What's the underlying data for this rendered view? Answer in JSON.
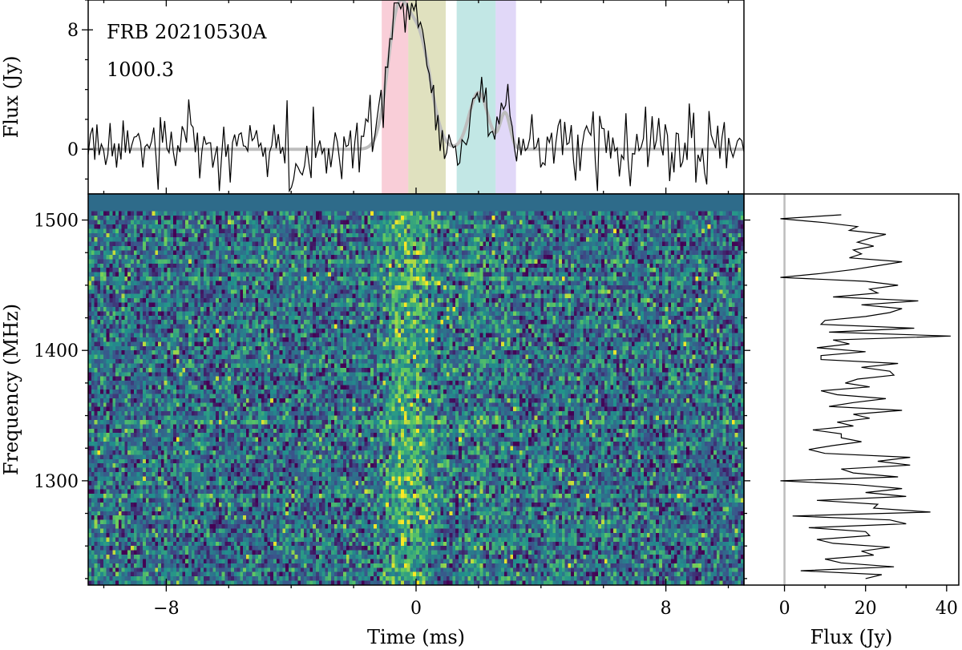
{
  "chart_data": [
    {
      "panel": "time-series",
      "type": "line",
      "title": "",
      "annotations": [
        "FRB 20210530A",
        "1000.3"
      ],
      "xlabel": "",
      "ylabel": "Flux (Jy)",
      "xlim": [
        -10.5,
        10.5
      ],
      "ylim": [
        -3,
        10
      ],
      "yticks": [
        0,
        8
      ],
      "ytick_labels": [
        "0",
        "8"
      ],
      "highlight_bands": [
        {
          "x0": -1.1,
          "x1": -0.25,
          "color": "#f4a6b8"
        },
        {
          "x0": -0.25,
          "x1": 0.95,
          "color": "#c7c98a"
        },
        {
          "x0": 1.3,
          "x1": 2.55,
          "color": "#8fd3cf"
        },
        {
          "x0": 2.55,
          "x1": 3.2,
          "color": "#c8b8f2"
        }
      ],
      "series": [
        {
          "style": "noisy-profile",
          "color": "#000000",
          "noise_rms": 1.15,
          "seed": 530,
          "x_step": 0.07
        },
        {
          "style": "model",
          "color": "#bdbdbd",
          "components": [
            {
              "amp": 8.3,
              "center": -0.6,
              "sigma": 0.33
            },
            {
              "amp": 7.2,
              "center": 0.1,
              "sigma": 0.38
            },
            {
              "amp": 3.8,
              "center": 2.0,
              "sigma": 0.3
            },
            {
              "amp": 2.4,
              "center": 2.85,
              "sigma": 0.16
            }
          ]
        }
      ]
    },
    {
      "panel": "dynamic-spectrum",
      "type": "heatmap",
      "title": "",
      "xlabel": "Time (ms)",
      "ylabel": "Frequency (MHz)",
      "xlim": [
        -10.5,
        10.5
      ],
      "ylim": [
        1220,
        1520
      ],
      "xticks": [
        -8,
        0,
        8
      ],
      "xtick_labels": [
        "−8",
        "0",
        "8"
      ],
      "yticks": [
        1300,
        1400,
        1500
      ],
      "ytick_labels": [
        "1300",
        "1400",
        "1500"
      ],
      "colormap": [
        "#440154",
        "#3b528b",
        "#21918c",
        "#5ec962",
        "#fde725"
      ],
      "flagged_color": "#2e6b8a",
      "flagged_top_freq": 1506,
      "time_bins": 216,
      "freq_channels": 90,
      "bright_freq_lines": [
        1467,
        1455,
        1345,
        1288
      ]
    },
    {
      "panel": "spectrum",
      "type": "line",
      "title": "",
      "xlabel": "Flux (Jy)",
      "ylabel": "",
      "xlim": [
        -10,
        43
      ],
      "xticks": [
        0,
        20,
        40
      ],
      "xtick_labels": [
        "0",
        "20",
        "40"
      ],
      "ylim": [
        1220,
        1520
      ],
      "zero_line_color": "#bdbdbd",
      "freq_mhz": [
        1225,
        1228,
        1231,
        1234,
        1237,
        1240,
        1243,
        1246,
        1249,
        1252,
        1255,
        1258,
        1261,
        1264,
        1267,
        1270,
        1273,
        1276,
        1279,
        1282,
        1285,
        1288,
        1291,
        1294,
        1297,
        1300,
        1303,
        1306,
        1309,
        1312,
        1315,
        1318,
        1321,
        1324,
        1327,
        1330,
        1333,
        1336,
        1339,
        1342,
        1345,
        1348,
        1351,
        1354,
        1357,
        1360,
        1363,
        1366,
        1369,
        1372,
        1375,
        1378,
        1381,
        1384,
        1387,
        1390,
        1393,
        1396,
        1399,
        1402,
        1405,
        1408,
        1411,
        1414,
        1417,
        1420,
        1423,
        1426,
        1429,
        1432,
        1435,
        1438,
        1441,
        1444,
        1447,
        1450,
        1453,
        1456,
        1459,
        1462,
        1465,
        1468,
        1471,
        1474,
        1477,
        1480,
        1483,
        1486,
        1489,
        1492,
        1495,
        1498,
        1501,
        1504
      ],
      "flux_jy": [
        20,
        24,
        4,
        27,
        14,
        10,
        22,
        19,
        26,
        12,
        8,
        21,
        20,
        6,
        30,
        26,
        2,
        36,
        22,
        23,
        8,
        30,
        20,
        29,
        18,
        -1,
        28,
        17,
        14,
        31,
        23,
        31,
        10,
        6,
        12,
        19,
        14,
        14,
        7,
        17,
        13,
        21,
        17,
        29,
        11,
        17,
        25,
        13,
        9,
        21,
        15,
        18,
        27,
        26,
        19,
        28,
        9,
        9,
        20,
        8,
        16,
        12,
        41,
        11,
        32,
        9,
        10,
        20,
        26,
        29,
        19,
        33,
        12,
        23,
        21,
        28,
        20,
        -1,
        9,
        17,
        23,
        29,
        16,
        19,
        17,
        22,
        18,
        21,
        25,
        16,
        18,
        10,
        -1,
        14
      ]
    }
  ]
}
